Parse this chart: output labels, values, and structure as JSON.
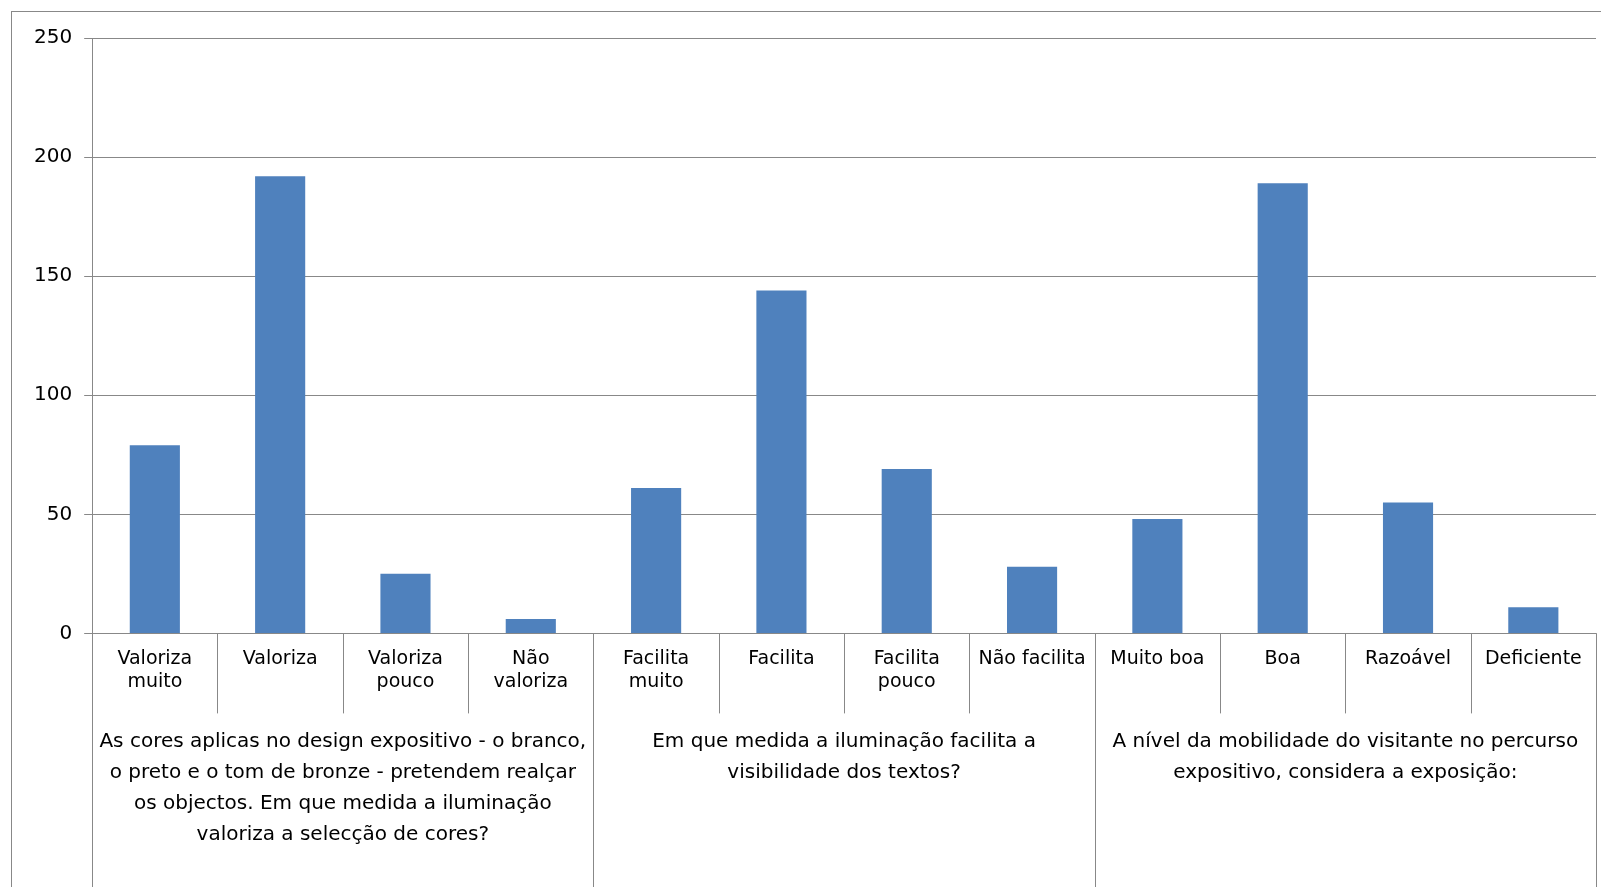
{
  "chart_data": {
    "type": "bar",
    "categories": [
      "Valoriza muito",
      "Valoriza",
      "Valoriza pouco",
      "Não valoriza",
      "Facilita muito",
      "Facilita",
      "Facilita pouco",
      "Não facilita",
      "Muito boa",
      "Boa",
      "Razoável",
      "Deficiente"
    ],
    "values": [
      79,
      192,
      25,
      6,
      61,
      144,
      69,
      28,
      48,
      189,
      55,
      11
    ],
    "color": "#4f81bd",
    "ylim": [
      0,
      250
    ],
    "yticks": [
      0,
      50,
      100,
      150,
      200,
      250
    ],
    "grid": "y",
    "annotations": [
      "As cores aplicas no design expositivo - o branco, o preto e o tom de bronze - pretendem realçar os objectos. Em que medida a iluminação valoriza a selecção de cores?",
      "Em que medida a iluminação facilita a visibilidade dos textos?",
      "A nível da mobilidade do visitante no percurso expositivo, considera a exposição:"
    ]
  }
}
